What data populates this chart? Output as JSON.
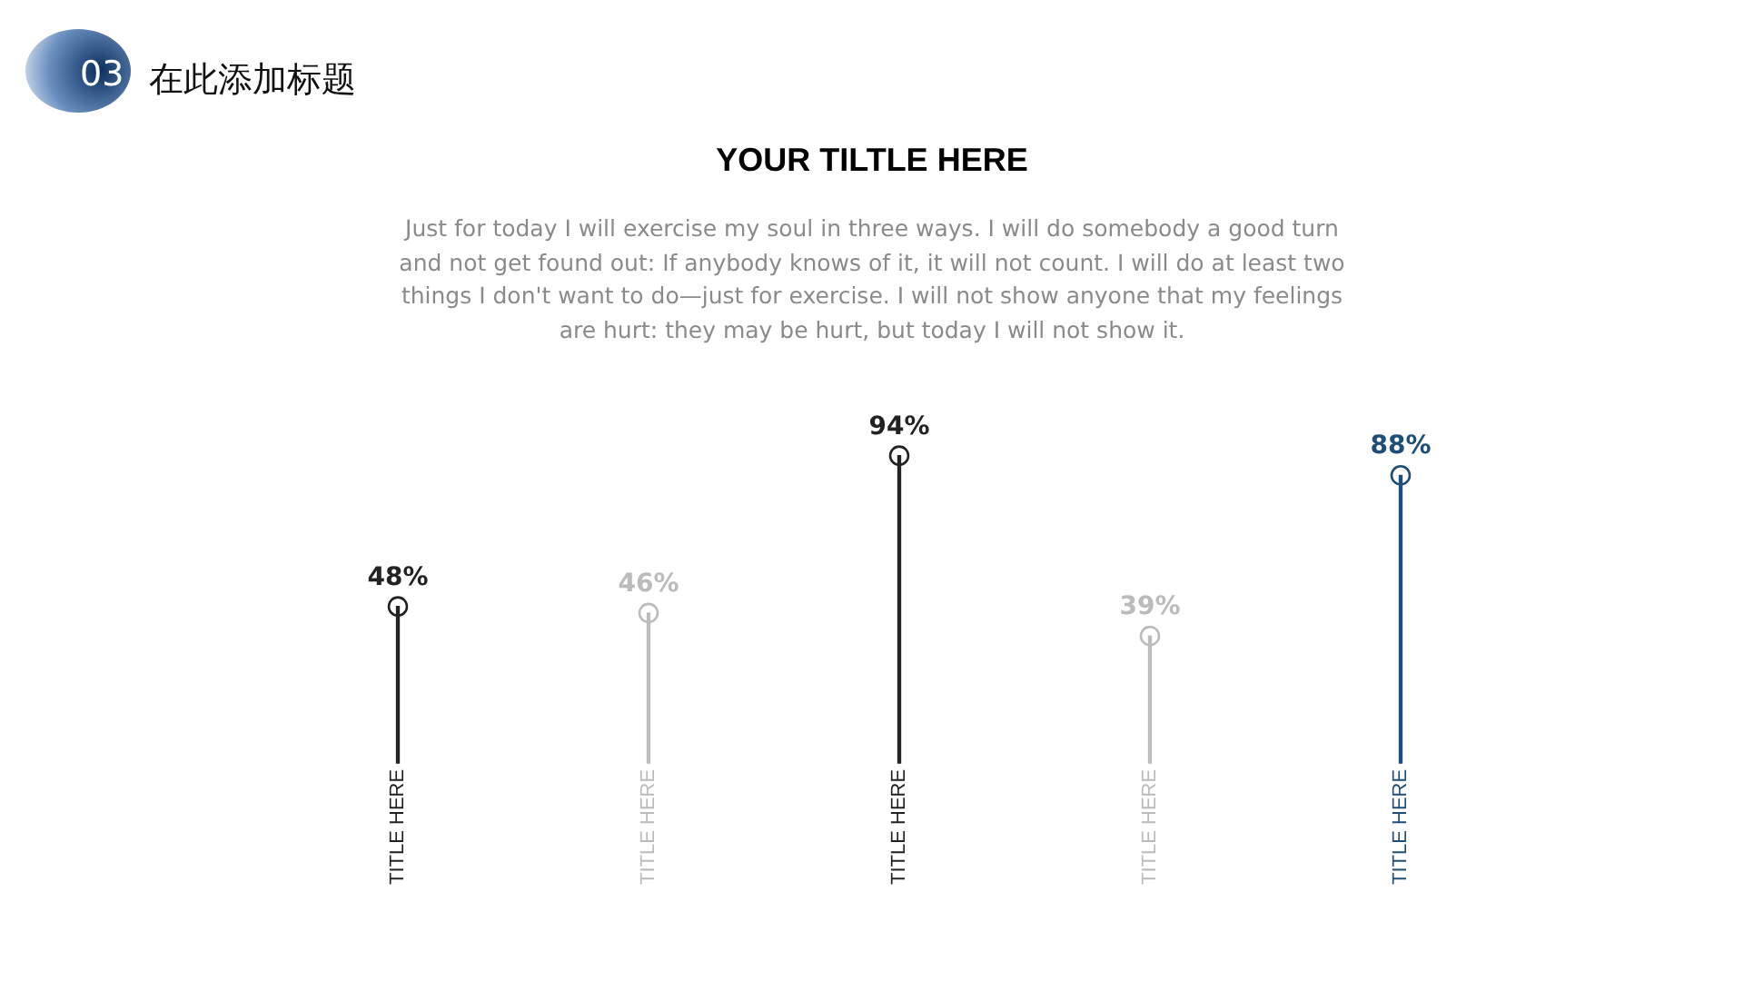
{
  "chart_data": {
    "type": "lollipop",
    "title": "YOUR TILTLE HERE",
    "subtitle": "Just for today I will exercise my soul in three ways. I will do somebody a good turn and not get found out: If anybody knows of it, it will not count. I will do at least two things I don't want to do—just for exercise. I will not show anyone that my feelings are hurt: they may be hurt, but today I will not show it.",
    "annotations": [
      "03",
      "在此添加标题"
    ],
    "categories": [
      "TITLE HERE",
      "TITLE HERE",
      "TITLE HERE",
      "TITLE HERE",
      "TITLE HERE"
    ],
    "values": [
      48,
      46,
      94,
      39,
      88
    ],
    "colors": [
      "#222222",
      "#bbbbbb",
      "#222222",
      "#bbbbbb",
      "#1f4e79"
    ],
    "value_labels": [
      "48%",
      "46%",
      "94%",
      "39%",
      "88%"
    ]
  }
}
